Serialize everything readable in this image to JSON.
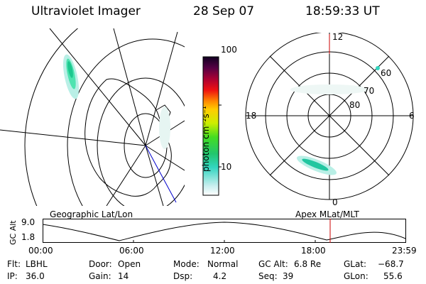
{
  "header": {
    "instrument": "Ultraviolet Imager",
    "date": "28 Sep 07",
    "time": "18:59:33 UT"
  },
  "colorbar": {
    "label": "photon cm⁻²s⁻¹",
    "ticks": [
      "100",
      "10"
    ]
  },
  "polar": {
    "mlt_labels": {
      "top": "12",
      "left": "18",
      "right": "6",
      "bottom": "0"
    },
    "lat_labels": [
      "60",
      "70",
      "80"
    ]
  },
  "timeline": {
    "left_title": "Geographic Lat/Lon",
    "right_title": "Apex MLat/MLT",
    "y_axis_label": "GC Alt",
    "y_ticks": [
      "9.0",
      "1.8"
    ],
    "x_ticks": [
      "00:00",
      "06:00",
      "12:00",
      "18:00",
      "23:59"
    ]
  },
  "info": [
    {
      "key": "Flt:",
      "value": "LBHL"
    },
    {
      "key": "IP:",
      "value": "36.0"
    },
    {
      "key": "Door:",
      "value": "Open"
    },
    {
      "key": "Gain:",
      "value": "14"
    },
    {
      "key": "Mode:",
      "value": "Normal"
    },
    {
      "key": "Dsp:",
      "value": "4.2"
    },
    {
      "key": "GC Alt:",
      "value": "6.8 Re"
    },
    {
      "key": "Seq:",
      "value": "39"
    },
    {
      "key": "GLat:",
      "value": "−68.7"
    },
    {
      "key": "GLon:",
      "value": "55.6"
    }
  ]
}
